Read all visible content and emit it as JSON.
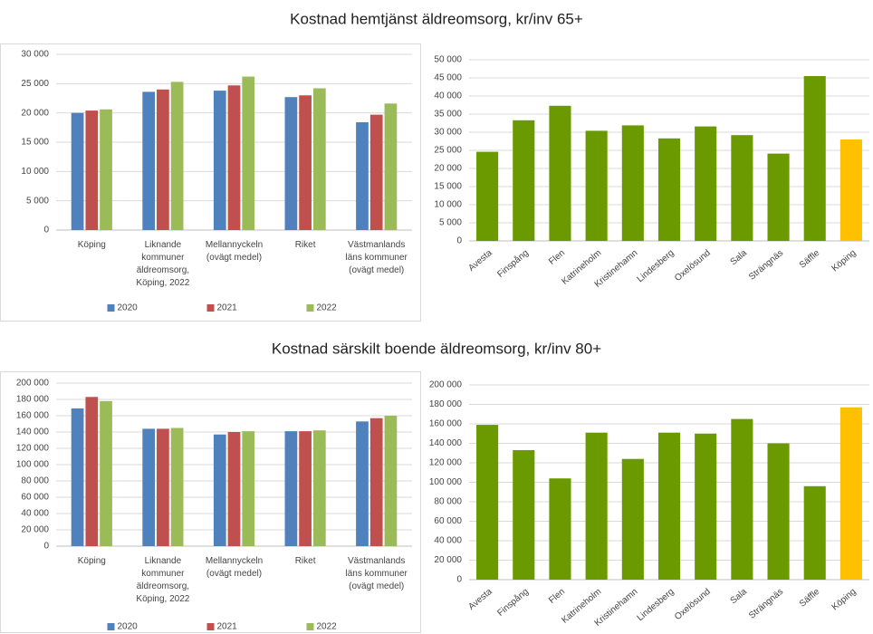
{
  "chart_data": [
    {
      "type": "bar",
      "title": "Kostnad hemtjänst äldreomsorg, kr/inv 65+",
      "categories": [
        "Köping",
        "Liknande kommuner äldreomsorg, Köping, 2022",
        "Mellannyckeln (ovägt medel)",
        "Riket",
        "Västmanlands läns kommuner (ovägt medel)"
      ],
      "series": [
        {
          "name": "2020",
          "color": "#4f81bd",
          "values": [
            20000,
            23600,
            23800,
            22700,
            18400
          ]
        },
        {
          "name": "2021",
          "color": "#c0504d",
          "values": [
            20400,
            24000,
            24700,
            23000,
            19700
          ]
        },
        {
          "name": "2022",
          "color": "#9bbb59",
          "values": [
            20600,
            25300,
            26200,
            24200,
            21600
          ]
        }
      ],
      "ylim": [
        0,
        30000
      ],
      "yticks": [
        0,
        {
          "value": 5000,
          "label": "5 000"
        },
        {
          "value": 10000,
          "label": "10 000"
        },
        {
          "value": 15000,
          "label": "15 000"
        },
        {
          "value": 20000,
          "label": "20 000"
        },
        {
          "value": 25000,
          "label": "25 000"
        },
        {
          "value": 30000,
          "label": "30 000"
        }
      ],
      "legend": "bottom"
    },
    {
      "type": "bar",
      "categories": [
        "Avesta",
        "Finspång",
        "Flen",
        "Katrineholm",
        "Kristinehamn",
        "Lindesberg",
        "Oxelösund",
        "Sala",
        "Strängnäs",
        "Säffle",
        "Köping"
      ],
      "values": [
        24600,
        33300,
        37300,
        30400,
        31900,
        28300,
        31600,
        29200,
        24100,
        45500,
        28000
      ],
      "colors": [
        "#6a9a00",
        "#6a9a00",
        "#6a9a00",
        "#6a9a00",
        "#6a9a00",
        "#6a9a00",
        "#6a9a00",
        "#6a9a00",
        "#6a9a00",
        "#6a9a00",
        "#ffc000"
      ],
      "ylim": [
        0,
        50000
      ],
      "yticks": [
        0,
        {
          "value": 5000,
          "label": "5 000"
        },
        {
          "value": 10000,
          "label": "10 000"
        },
        {
          "value": 15000,
          "label": "15 000"
        },
        {
          "value": 20000,
          "label": "20 000"
        },
        {
          "value": 25000,
          "label": "25 000"
        },
        {
          "value": 30000,
          "label": "30 000"
        },
        {
          "value": 35000,
          "label": "35 000"
        },
        {
          "value": 40000,
          "label": "40 000"
        },
        {
          "value": 45000,
          "label": "45 000"
        },
        {
          "value": 50000,
          "label": "50 000"
        }
      ]
    },
    {
      "type": "bar",
      "title": "Kostnad särskilt boende äldreomsorg, kr/inv 80+",
      "categories": [
        "Köping",
        "Liknande kommuner äldreomsorg, Köping, 2022",
        "Mellannyckeln (ovägt medel)",
        "Riket",
        "Västmanlands läns kommuner (ovägt medel)"
      ],
      "series": [
        {
          "name": "2020",
          "color": "#4f81bd",
          "values": [
            169000,
            144000,
            137000,
            141000,
            153000
          ]
        },
        {
          "name": "2021",
          "color": "#c0504d",
          "values": [
            183000,
            144000,
            140000,
            141000,
            157000
          ]
        },
        {
          "name": "2022",
          "color": "#9bbb59",
          "values": [
            178000,
            145000,
            141000,
            142000,
            160000
          ]
        }
      ],
      "ylim": [
        0,
        200000
      ],
      "yticks": [
        0,
        {
          "value": 20000,
          "label": "20 000"
        },
        {
          "value": 40000,
          "label": "40 000"
        },
        {
          "value": 60000,
          "label": "60 000"
        },
        {
          "value": 80000,
          "label": "80 000"
        },
        {
          "value": 100000,
          "label": "100 000"
        },
        {
          "value": 120000,
          "label": "120 000"
        },
        {
          "value": 140000,
          "label": "140 000"
        },
        {
          "value": 160000,
          "label": "160 000"
        },
        {
          "value": 180000,
          "label": "180 000"
        },
        {
          "value": 200000,
          "label": "200 000"
        }
      ],
      "legend": "bottom"
    },
    {
      "type": "bar",
      "categories": [
        "Avesta",
        "Finspång",
        "Flen",
        "Katrineholm",
        "Kristinehamn",
        "Lindesberg",
        "Oxelösund",
        "Sala",
        "Strängnäs",
        "Säffle",
        "Köping"
      ],
      "values": [
        159000,
        133000,
        104000,
        151000,
        124000,
        151000,
        150000,
        165000,
        140000,
        96000,
        177000
      ],
      "colors": [
        "#6a9a00",
        "#6a9a00",
        "#6a9a00",
        "#6a9a00",
        "#6a9a00",
        "#6a9a00",
        "#6a9a00",
        "#6a9a00",
        "#6a9a00",
        "#6a9a00",
        "#ffc000"
      ],
      "ylim": [
        0,
        200000
      ],
      "yticks": [
        0,
        {
          "value": 20000,
          "label": "20 000"
        },
        {
          "value": 40000,
          "label": "40 000"
        },
        {
          "value": 60000,
          "label": "60 000"
        },
        {
          "value": 80000,
          "label": "80 000"
        },
        {
          "value": 100000,
          "label": "100 000"
        },
        {
          "value": 120000,
          "label": "120 000"
        },
        {
          "value": 140000,
          "label": "140 000"
        },
        {
          "value": 160000,
          "label": "160 000"
        },
        {
          "value": 180000,
          "label": "180 000"
        },
        {
          "value": 200000,
          "label": "200 000"
        }
      ]
    }
  ]
}
